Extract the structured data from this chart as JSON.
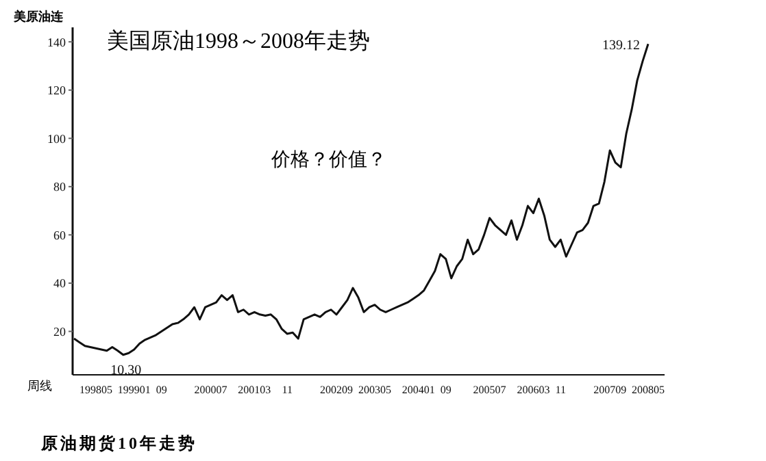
{
  "chart_data": {
    "type": "line",
    "title": "美国原油1998～2008年走势",
    "ylabel": "美原油连",
    "xlabel": "周线",
    "annotations": [
      "价格？价值？",
      "原油期货10年走势"
    ],
    "categories": [
      null,
      null,
      null,
      null,
      "199805",
      null,
      null,
      null,
      null,
      null,
      null,
      "199901",
      null,
      null,
      null,
      null,
      "09",
      null,
      null,
      null,
      null,
      null,
      null,
      null,
      null,
      "200007",
      null,
      null,
      null,
      null,
      null,
      null,
      null,
      "200103",
      null,
      null,
      null,
      null,
      null,
      "11",
      null,
      null,
      null,
      null,
      null,
      null,
      null,
      null,
      "200209",
      null,
      null,
      null,
      null,
      null,
      null,
      "200305",
      null,
      null,
      null,
      null,
      null,
      null,
      null,
      "200401",
      null,
      null,
      null,
      null,
      "09",
      null,
      null,
      null,
      null,
      null,
      null,
      null,
      "200507",
      null,
      null,
      null,
      null,
      null,
      null,
      null,
      "200603",
      null,
      null,
      null,
      null,
      "11",
      null,
      null,
      null,
      null,
      null,
      null,
      null,
      null,
      "200709",
      null,
      null,
      null,
      null,
      null,
      null,
      "200805"
    ],
    "series": [
      {
        "color": "#111111",
        "values": [
          17,
          15.5,
          14,
          13.5,
          13,
          12.5,
          12,
          13.5,
          12,
          10.3,
          11,
          12.5,
          15,
          16.5,
          17.5,
          18.5,
          20,
          21.5,
          23,
          23.5,
          25,
          27,
          30,
          25,
          30,
          31,
          32,
          35,
          33,
          35,
          28,
          29,
          27,
          28,
          27,
          26.5,
          27,
          25,
          21,
          19,
          19.5,
          17,
          25,
          26,
          27,
          26,
          28,
          29,
          27,
          30,
          33,
          38,
          34,
          28,
          30,
          31,
          29,
          28,
          29,
          30,
          31,
          32,
          33.5,
          35,
          37,
          41,
          45,
          52,
          50,
          42,
          47,
          50,
          58,
          52,
          54,
          60,
          67,
          64,
          62,
          60,
          66,
          58,
          64,
          72,
          69,
          75,
          68,
          58,
          55,
          58,
          51,
          56,
          61,
          62,
          65,
          72,
          73,
          82,
          95,
          90,
          88,
          102,
          112,
          124,
          132,
          139.12
        ],
        "value_labels": [
          null,
          null,
          null,
          null,
          null,
          null,
          null,
          null,
          null,
          "10.30",
          null,
          null,
          null,
          null,
          null,
          null,
          null,
          null,
          null,
          null,
          null,
          null,
          null,
          null,
          null,
          null,
          null,
          null,
          null,
          null,
          null,
          null,
          null,
          null,
          null,
          null,
          null,
          null,
          null,
          null,
          null,
          null,
          null,
          null,
          null,
          null,
          null,
          null,
          null,
          null,
          null,
          null,
          null,
          null,
          null,
          null,
          null,
          null,
          null,
          null,
          null,
          null,
          null,
          null,
          null,
          null,
          null,
          null,
          null,
          null,
          null,
          null,
          null,
          null,
          null,
          null,
          null,
          null,
          null,
          null,
          null,
          null,
          null,
          null,
          null,
          null,
          null,
          null,
          null,
          null,
          null,
          null,
          null,
          null,
          null,
          null,
          null,
          null,
          null,
          null,
          null,
          null,
          null,
          null,
          null,
          "139.12"
        ]
      }
    ],
    "ylim": [
      2,
      146
    ],
    "yticks": [
      20,
      40,
      60,
      80,
      100,
      120,
      140
    ],
    "grid": false,
    "legend": false,
    "marker": "none",
    "line_style": "solid"
  }
}
